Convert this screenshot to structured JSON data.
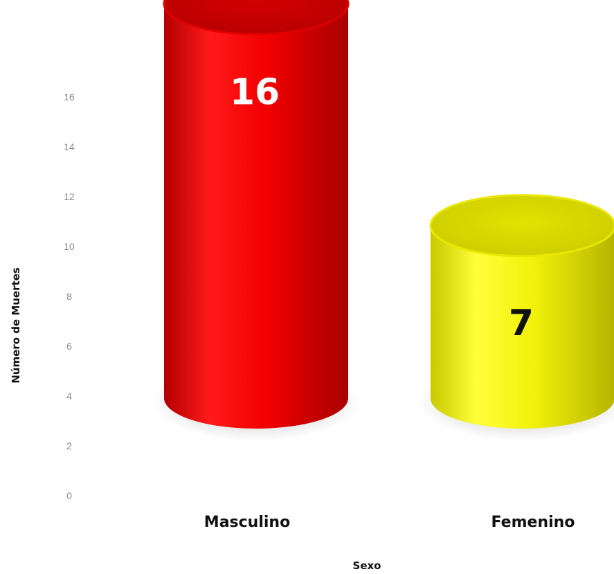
{
  "chart_data": {
    "type": "bar",
    "style": "3d-cylinder",
    "title": "",
    "xlabel": "Sexo",
    "ylabel": "Número de Muertes",
    "categories": [
      "Masculino",
      "Femenino"
    ],
    "values": [
      16,
      7
    ],
    "data_labels": [
      "16",
      "7"
    ],
    "colors": [
      "#f20000",
      "#f2f20a"
    ],
    "label_colors": [
      "#ffffff",
      "#111111"
    ],
    "yticks": [
      "0",
      "2",
      "4",
      "6",
      "8",
      "10",
      "12",
      "14",
      "16"
    ],
    "ylim": [
      0,
      16
    ],
    "grid": false,
    "legend": "none"
  }
}
